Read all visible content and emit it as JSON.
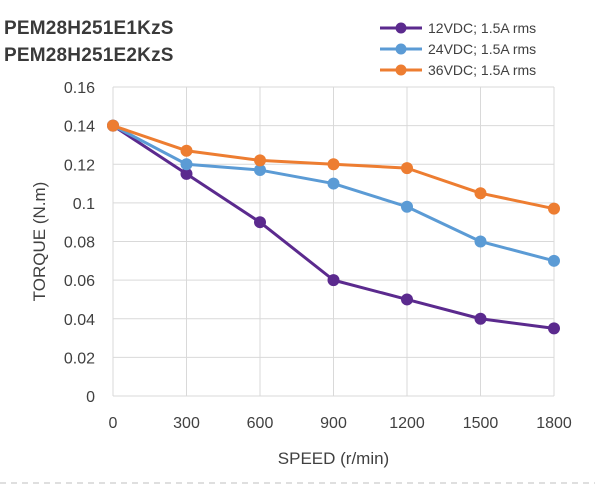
{
  "titles": [
    "PEM28H251E1KzS",
    "PEM28H251E2KzS"
  ],
  "chart_data": {
    "type": "line",
    "xlabel": "SPEED (r/min)",
    "ylabel": "TORQUE (N.m)",
    "x": [
      0,
      300,
      600,
      900,
      1200,
      1500,
      1800
    ],
    "xlim": [
      0,
      1800
    ],
    "ylim": [
      0,
      0.16
    ],
    "yticks": [
      "0",
      "0.02",
      "0.04",
      "0.06",
      "0.08",
      "0.1",
      "0.12",
      "0.14",
      "0.16"
    ],
    "xticks": [
      "0",
      "300",
      "600",
      "900",
      "1200",
      "1500",
      "1800"
    ],
    "grid": true,
    "legend_position": "top-right",
    "series": [
      {
        "name": "12VDC; 1.5A rms",
        "color": "#5b2a8e",
        "values": [
          0.14,
          0.115,
          0.09,
          0.06,
          0.05,
          0.04,
          0.035
        ]
      },
      {
        "name": "24VDC; 1.5A rms",
        "color": "#5b9bd5",
        "values": [
          0.14,
          0.12,
          0.117,
          0.11,
          0.098,
          0.08,
          0.07
        ]
      },
      {
        "name": "36VDC; 1.5A rms",
        "color": "#ed7d31",
        "values": [
          0.14,
          0.127,
          0.122,
          0.12,
          0.118,
          0.105,
          0.097
        ]
      }
    ]
  }
}
